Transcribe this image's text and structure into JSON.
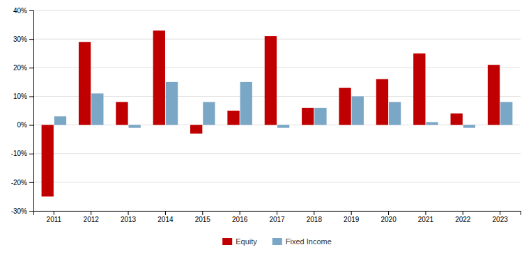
{
  "chart_data": {
    "type": "bar",
    "categories": [
      "2011",
      "2012",
      "2013",
      "2014",
      "2015",
      "2016",
      "2017",
      "2018",
      "2019",
      "2020",
      "2021",
      "2022",
      "2023"
    ],
    "series": [
      {
        "name": "Equity",
        "color": "#C00000",
        "values": [
          -25,
          29,
          8,
          33,
          -3,
          5,
          31,
          6,
          13,
          16,
          25,
          4,
          21
        ]
      },
      {
        "name": "Fixed Income",
        "color": "#7BA7C7",
        "values": [
          3,
          11,
          -1,
          15,
          8,
          15,
          -1,
          6,
          10,
          8,
          1,
          -1,
          8
        ]
      }
    ],
    "ylim": [
      -30,
      40
    ],
    "yticks": [
      {
        "value": -30,
        "label": "-30%"
      },
      {
        "value": -20,
        "label": "-20%"
      },
      {
        "value": -10,
        "label": "-10%"
      },
      {
        "value": 0,
        "label": "0%"
      },
      {
        "value": 10,
        "label": "10%"
      },
      {
        "value": 20,
        "label": "20%"
      },
      {
        "value": 30,
        "label": "30%"
      },
      {
        "value": 40,
        "label": "40%"
      }
    ],
    "grid": true,
    "legend": "bottom"
  }
}
